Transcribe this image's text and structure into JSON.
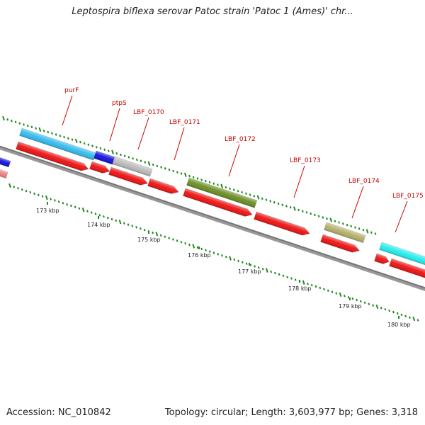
{
  "title": "Leptospira biflexa serovar Patoc strain 'Patoc 1 (Ames)' chr...",
  "footer": {
    "accession": "Accession: NC_010842",
    "topology": "Topology: circular; Length: 3,603,977 bp; Genes: 3,318"
  },
  "gene_labels": [
    "purF",
    "ptpS",
    "LBF_0170",
    "LBF_0171",
    "LBF_0172",
    "LBF_0173",
    "LBF_0174",
    "LBF_0175"
  ],
  "scale_labels": [
    "173 kbp",
    "174 kbp",
    "175 kbp",
    "176 kbp",
    "177 kbp",
    "178 kbp",
    "179 kbp",
    "180 kbp"
  ],
  "colors": {
    "cds_red": "#ee1111",
    "sky_blue": "#33bbee",
    "blue": "#1111dd",
    "gray": "#bbbbbb",
    "olive": "#6b8e23",
    "khaki": "#b5b068",
    "cyan": "#22eeee",
    "pink": "#f08080",
    "tick_green": "#228822",
    "label_red": "#cc0000",
    "backbone": "#777777"
  }
}
